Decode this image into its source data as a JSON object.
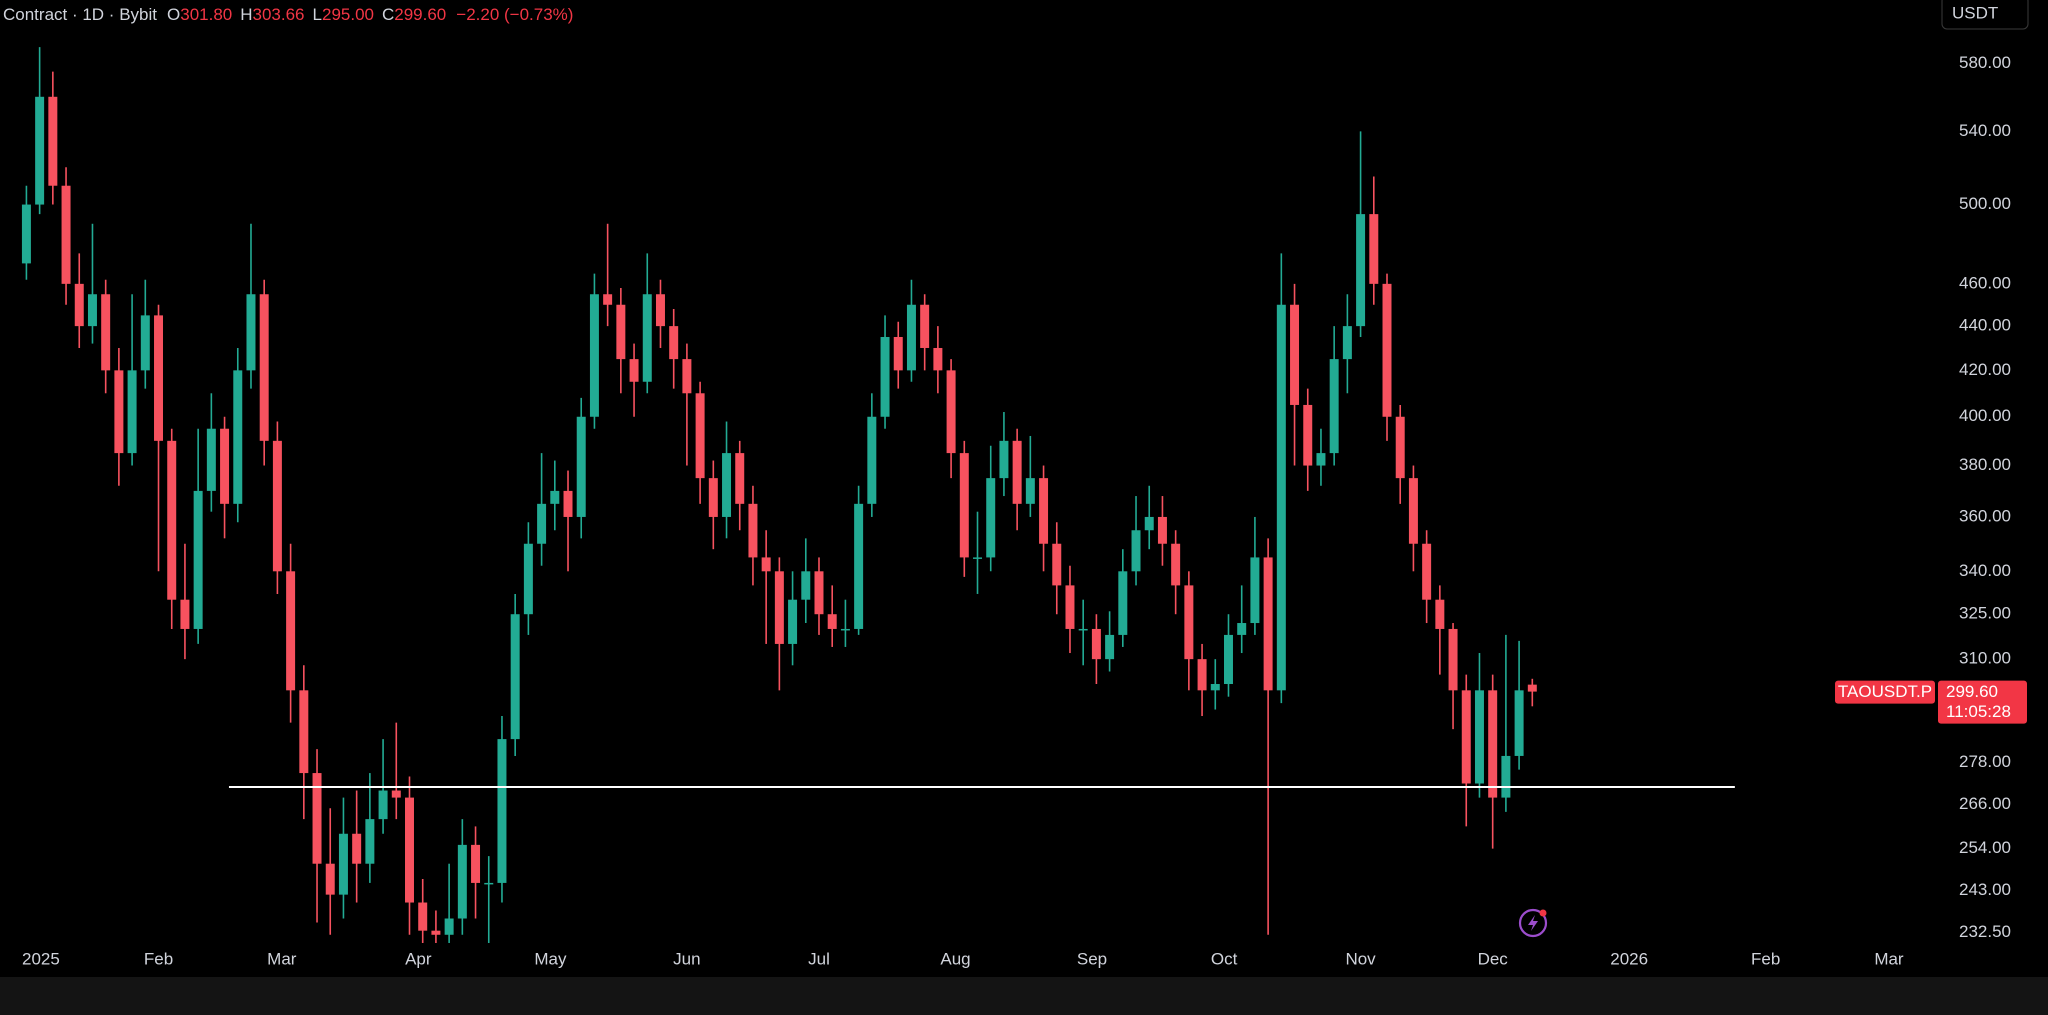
{
  "chart_data": {
    "type": "candlestick",
    "legend": {
      "symbol": "Contract · 1D · Bybit",
      "items": [
        [
          "O",
          "301.80"
        ],
        [
          "H",
          "303.66"
        ],
        [
          "L",
          "295.00"
        ],
        [
          "C",
          "299.60"
        ]
      ],
      "change": "−2.20 (−0.73%)"
    },
    "currency": "USDT",
    "last_price": {
      "label": "TAOUSDT.P",
      "price": "299.60",
      "countdown": "11:05:28"
    },
    "up_color": "#22ab94",
    "down_color": "#f7525f",
    "log_scale": true,
    "grid": false,
    "xlim": [
      -5,
      434
    ],
    "xticks": [
      {
        "value": 0,
        "label": "2025"
      },
      {
        "value": 31,
        "label": "Feb"
      },
      {
        "value": 59,
        "label": "Mar"
      },
      {
        "value": 90,
        "label": "Apr"
      },
      {
        "value": 120,
        "label": "May"
      },
      {
        "value": 151,
        "label": "Jun"
      },
      {
        "value": 181,
        "label": "Jul"
      },
      {
        "value": 212,
        "label": "Aug"
      },
      {
        "value": 243,
        "label": "Sep"
      },
      {
        "value": 273,
        "label": "Oct"
      },
      {
        "value": 304,
        "label": "Nov"
      },
      {
        "value": 334,
        "label": "Dec"
      },
      {
        "value": 365,
        "label": "2026"
      },
      {
        "value": 396,
        "label": "Feb"
      },
      {
        "value": 424,
        "label": "Mar"
      }
    ],
    "ylim": [
      230,
      620
    ],
    "yticks": [
      {
        "value": 580,
        "label": "580.00"
      },
      {
        "value": 540,
        "label": "540.00"
      },
      {
        "value": 500,
        "label": "500.00"
      },
      {
        "value": 460,
        "label": "460.00"
      },
      {
        "value": 440,
        "label": "440.00"
      },
      {
        "value": 420,
        "label": "420.00"
      },
      {
        "value": 400,
        "label": "400.00"
      },
      {
        "value": 380,
        "label": "380.00"
      },
      {
        "value": 360,
        "label": "360.00"
      },
      {
        "value": 340,
        "label": "340.00"
      },
      {
        "value": 325,
        "label": "325.00"
      },
      {
        "value": 310,
        "label": "310.00"
      },
      {
        "value": 278,
        "label": "278.00"
      },
      {
        "value": 266,
        "label": "266.00"
      },
      {
        "value": 254,
        "label": "254.00"
      },
      {
        "value": 243,
        "label": "243.00"
      },
      {
        "value": 232.5,
        "label": "232.50"
      }
    ],
    "hline": {
      "value": 271,
      "x": [
        47,
        389
      ],
      "color": "#ffffff"
    },
    "x": [
      1,
      4,
      7,
      10,
      13,
      16,
      19,
      22,
      25,
      28,
      31,
      34,
      37,
      40,
      43,
      46,
      49,
      52,
      55,
      58,
      61,
      64,
      67,
      70,
      73,
      76,
      79,
      82,
      85,
      88,
      91,
      94,
      97,
      100,
      103,
      106,
      109,
      112,
      115,
      118,
      121,
      124,
      127,
      130,
      133,
      136,
      139,
      142,
      145,
      148,
      151,
      154,
      157,
      160,
      163,
      166,
      169,
      172,
      175,
      178,
      181,
      184,
      187,
      190,
      193,
      196,
      199,
      202,
      205,
      208,
      211,
      214,
      217,
      220,
      223,
      226,
      229,
      232,
      235,
      238,
      241,
      244,
      247,
      250,
      253,
      256,
      259,
      262,
      265,
      268,
      271,
      274,
      277,
      280,
      283,
      286,
      289,
      292,
      295,
      298,
      301,
      304,
      307,
      310,
      313,
      316,
      319,
      322,
      325,
      328,
      331,
      334,
      337,
      340,
      343
    ],
    "open": [
      470,
      500,
      560,
      510,
      460,
      440,
      455,
      420,
      385,
      420,
      445,
      390,
      330,
      320,
      370,
      395,
      365,
      420,
      455,
      390,
      340,
      300,
      275,
      250,
      242,
      258,
      250,
      262,
      270,
      268,
      240,
      233,
      232,
      236,
      255,
      245,
      245,
      285,
      325,
      350,
      365,
      370,
      360,
      400,
      455,
      450,
      425,
      415,
      455,
      440,
      425,
      410,
      375,
      360,
      385,
      365,
      345,
      340,
      315,
      330,
      340,
      325,
      320,
      320,
      365,
      400,
      435,
      420,
      450,
      430,
      420,
      385,
      345,
      345,
      375,
      390,
      365,
      375,
      350,
      335,
      320,
      320,
      310,
      318,
      340,
      355,
      360,
      350,
      335,
      310,
      300,
      302,
      318,
      322,
      345,
      300,
      450,
      405,
      380,
      385,
      425,
      440,
      495,
      460,
      400,
      375,
      350,
      330,
      320,
      300,
      272,
      300,
      268,
      280,
      301.8
    ],
    "high": [
      510,
      590,
      575,
      520,
      475,
      490,
      462,
      430,
      455,
      462,
      450,
      395,
      350,
      395,
      410,
      400,
      430,
      490,
      462,
      398,
      350,
      308,
      282,
      265,
      268,
      270,
      275,
      285,
      290,
      274,
      246,
      238,
      250,
      262,
      260,
      252,
      292,
      332,
      358,
      385,
      382,
      378,
      408,
      465,
      490,
      458,
      432,
      475,
      462,
      448,
      432,
      415,
      382,
      398,
      390,
      372,
      355,
      345,
      340,
      352,
      345,
      335,
      330,
      372,
      410,
      445,
      442,
      462,
      455,
      440,
      425,
      390,
      362,
      388,
      402,
      395,
      392,
      380,
      358,
      342,
      330,
      325,
      326,
      348,
      368,
      372,
      368,
      355,
      340,
      315,
      310,
      325,
      335,
      360,
      352,
      475,
      460,
      412,
      395,
      440,
      455,
      540,
      515,
      465,
      405,
      380,
      355,
      335,
      322,
      305,
      312,
      305,
      318,
      316,
      303.66
    ],
    "low": [
      462,
      495,
      500,
      450,
      430,
      432,
      410,
      372,
      380,
      412,
      340,
      320,
      310,
      315,
      362,
      352,
      358,
      412,
      380,
      332,
      290,
      262,
      235,
      232,
      236,
      240,
      245,
      258,
      262,
      232,
      226,
      226,
      228,
      232,
      236,
      228,
      240,
      280,
      318,
      342,
      355,
      340,
      352,
      395,
      440,
      410,
      400,
      410,
      430,
      412,
      380,
      365,
      348,
      352,
      355,
      335,
      315,
      300,
      308,
      322,
      318,
      314,
      314,
      318,
      360,
      395,
      412,
      415,
      420,
      410,
      375,
      338,
      332,
      340,
      368,
      355,
      360,
      340,
      325,
      312,
      308,
      302,
      306,
      314,
      335,
      348,
      342,
      325,
      300,
      292,
      294,
      298,
      312,
      318,
      232,
      296,
      380,
      370,
      372,
      380,
      410,
      435,
      450,
      390,
      365,
      340,
      322,
      305,
      288,
      260,
      268,
      254,
      264,
      276,
      295
    ],
    "close": [
      500,
      560,
      510,
      460,
      440,
      455,
      420,
      385,
      420,
      445,
      390,
      330,
      320,
      370,
      395,
      365,
      420,
      455,
      390,
      340,
      300,
      275,
      250,
      242,
      258,
      250,
      262,
      270,
      268,
      240,
      233,
      232,
      236,
      255,
      245,
      245,
      285,
      325,
      350,
      365,
      370,
      360,
      400,
      455,
      450,
      425,
      415,
      455,
      440,
      425,
      410,
      375,
      360,
      385,
      365,
      345,
      340,
      315,
      330,
      340,
      325,
      320,
      320,
      365,
      400,
      435,
      420,
      450,
      430,
      420,
      385,
      345,
      345,
      375,
      390,
      365,
      375,
      350,
      335,
      320,
      320,
      310,
      318,
      340,
      355,
      360,
      350,
      335,
      310,
      300,
      302,
      318,
      322,
      345,
      300,
      450,
      405,
      380,
      385,
      425,
      440,
      495,
      460,
      400,
      375,
      350,
      330,
      320,
      300,
      272,
      300,
      268,
      280,
      300,
      299.6
    ]
  }
}
